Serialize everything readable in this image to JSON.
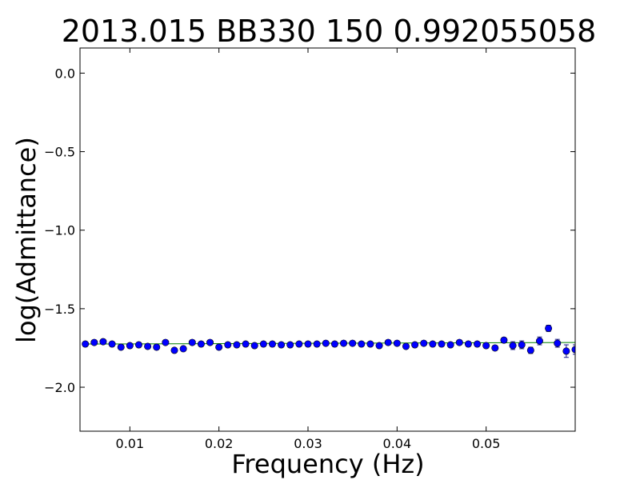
{
  "chart_data": {
    "type": "scatter",
    "title": "2013.015  BB330   150   0.992055058",
    "xlabel": "Frequency (Hz)",
    "ylabel": "log(Admittance)",
    "xlim": [
      0.0044,
      0.06
    ],
    "ylim": [
      -2.28,
      0.16
    ],
    "x_ticks": [
      0.01,
      0.02,
      0.03,
      0.04,
      0.05
    ],
    "x_tick_labels": [
      "0.01",
      "0.02",
      "0.03",
      "0.04",
      "0.05"
    ],
    "y_ticks": [
      0.0,
      -0.5,
      -1.0,
      -1.5,
      -2.0
    ],
    "y_tick_labels": [
      "0.0",
      "−0.5",
      "−1.0",
      "−1.5",
      "−2.0"
    ],
    "grid": false,
    "colors": {
      "points": "#0000ff",
      "errorbars": "#1a1a8c",
      "fit": "#008000"
    },
    "fit_line": {
      "x": [
        0.005,
        0.06
      ],
      "y": [
        -1.725,
        -1.715
      ]
    },
    "series": [
      {
        "x": [
          0.005,
          0.006,
          0.007,
          0.008,
          0.009,
          0.01,
          0.011,
          0.012,
          0.013,
          0.014,
          0.015,
          0.016,
          0.017,
          0.018,
          0.019,
          0.02,
          0.021,
          0.022,
          0.023,
          0.024,
          0.025,
          0.026,
          0.027,
          0.028,
          0.029,
          0.03,
          0.031,
          0.032,
          0.033,
          0.034,
          0.035,
          0.036,
          0.037,
          0.038,
          0.039,
          0.04,
          0.041,
          0.042,
          0.043,
          0.044,
          0.045,
          0.046,
          0.047,
          0.048,
          0.049,
          0.05,
          0.051,
          0.052,
          0.053,
          0.054,
          0.055,
          0.056,
          0.057,
          0.058,
          0.059,
          0.06
        ],
        "y": [
          -1.725,
          -1.715,
          -1.71,
          -1.725,
          -1.745,
          -1.735,
          -1.73,
          -1.74,
          -1.745,
          -1.715,
          -1.765,
          -1.755,
          -1.715,
          -1.725,
          -1.715,
          -1.745,
          -1.73,
          -1.73,
          -1.725,
          -1.735,
          -1.725,
          -1.725,
          -1.73,
          -1.73,
          -1.725,
          -1.725,
          -1.725,
          -1.72,
          -1.725,
          -1.72,
          -1.72,
          -1.725,
          -1.725,
          -1.735,
          -1.715,
          -1.72,
          -1.74,
          -1.73,
          -1.72,
          -1.725,
          -1.725,
          -1.73,
          -1.715,
          -1.725,
          -1.725,
          -1.735,
          -1.75,
          -1.7,
          -1.735,
          -1.73,
          -1.765,
          -1.705,
          -1.625,
          -1.72,
          -1.77,
          -1.76
        ],
        "err": [
          0.005,
          0.005,
          0.005,
          0.005,
          0.005,
          0.005,
          0.005,
          0.005,
          0.005,
          0.006,
          0.006,
          0.006,
          0.006,
          0.006,
          0.006,
          0.006,
          0.006,
          0.006,
          0.006,
          0.006,
          0.006,
          0.006,
          0.006,
          0.006,
          0.006,
          0.006,
          0.006,
          0.006,
          0.006,
          0.006,
          0.006,
          0.006,
          0.006,
          0.006,
          0.008,
          0.008,
          0.008,
          0.008,
          0.008,
          0.008,
          0.008,
          0.008,
          0.01,
          0.01,
          0.01,
          0.012,
          0.015,
          0.015,
          0.025,
          0.025,
          0.02,
          0.025,
          0.02,
          0.025,
          0.04,
          0.03
        ]
      }
    ]
  }
}
